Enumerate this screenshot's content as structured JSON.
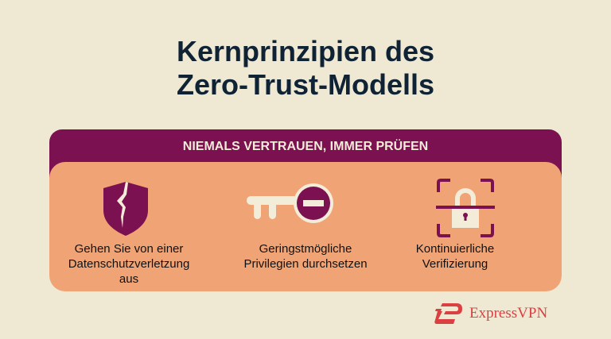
{
  "title_lines": [
    "Kernprinzipien des",
    "Zero-Trust-Modells"
  ],
  "banner": "NIEMALS VERTRAUEN, IMMER PRÜFEN",
  "principles": [
    {
      "icon": "broken-shield-icon",
      "lines": [
        "Gehen Sie von einer",
        "Datenschutzverletzung",
        "aus"
      ]
    },
    {
      "icon": "key-minus-icon",
      "lines": [
        "Geringstmögliche",
        "Privilegien durchsetzen"
      ]
    },
    {
      "icon": "lock-scan-icon",
      "lines": [
        "Kontinuierliche",
        "Verifizierung"
      ]
    }
  ],
  "brand": {
    "name": "ExpressVPN",
    "color": "#da3f42"
  },
  "colors": {
    "background": "#efe9d4",
    "purple": "#7b1150",
    "orange": "#f0a475",
    "title": "#0f2335"
  }
}
